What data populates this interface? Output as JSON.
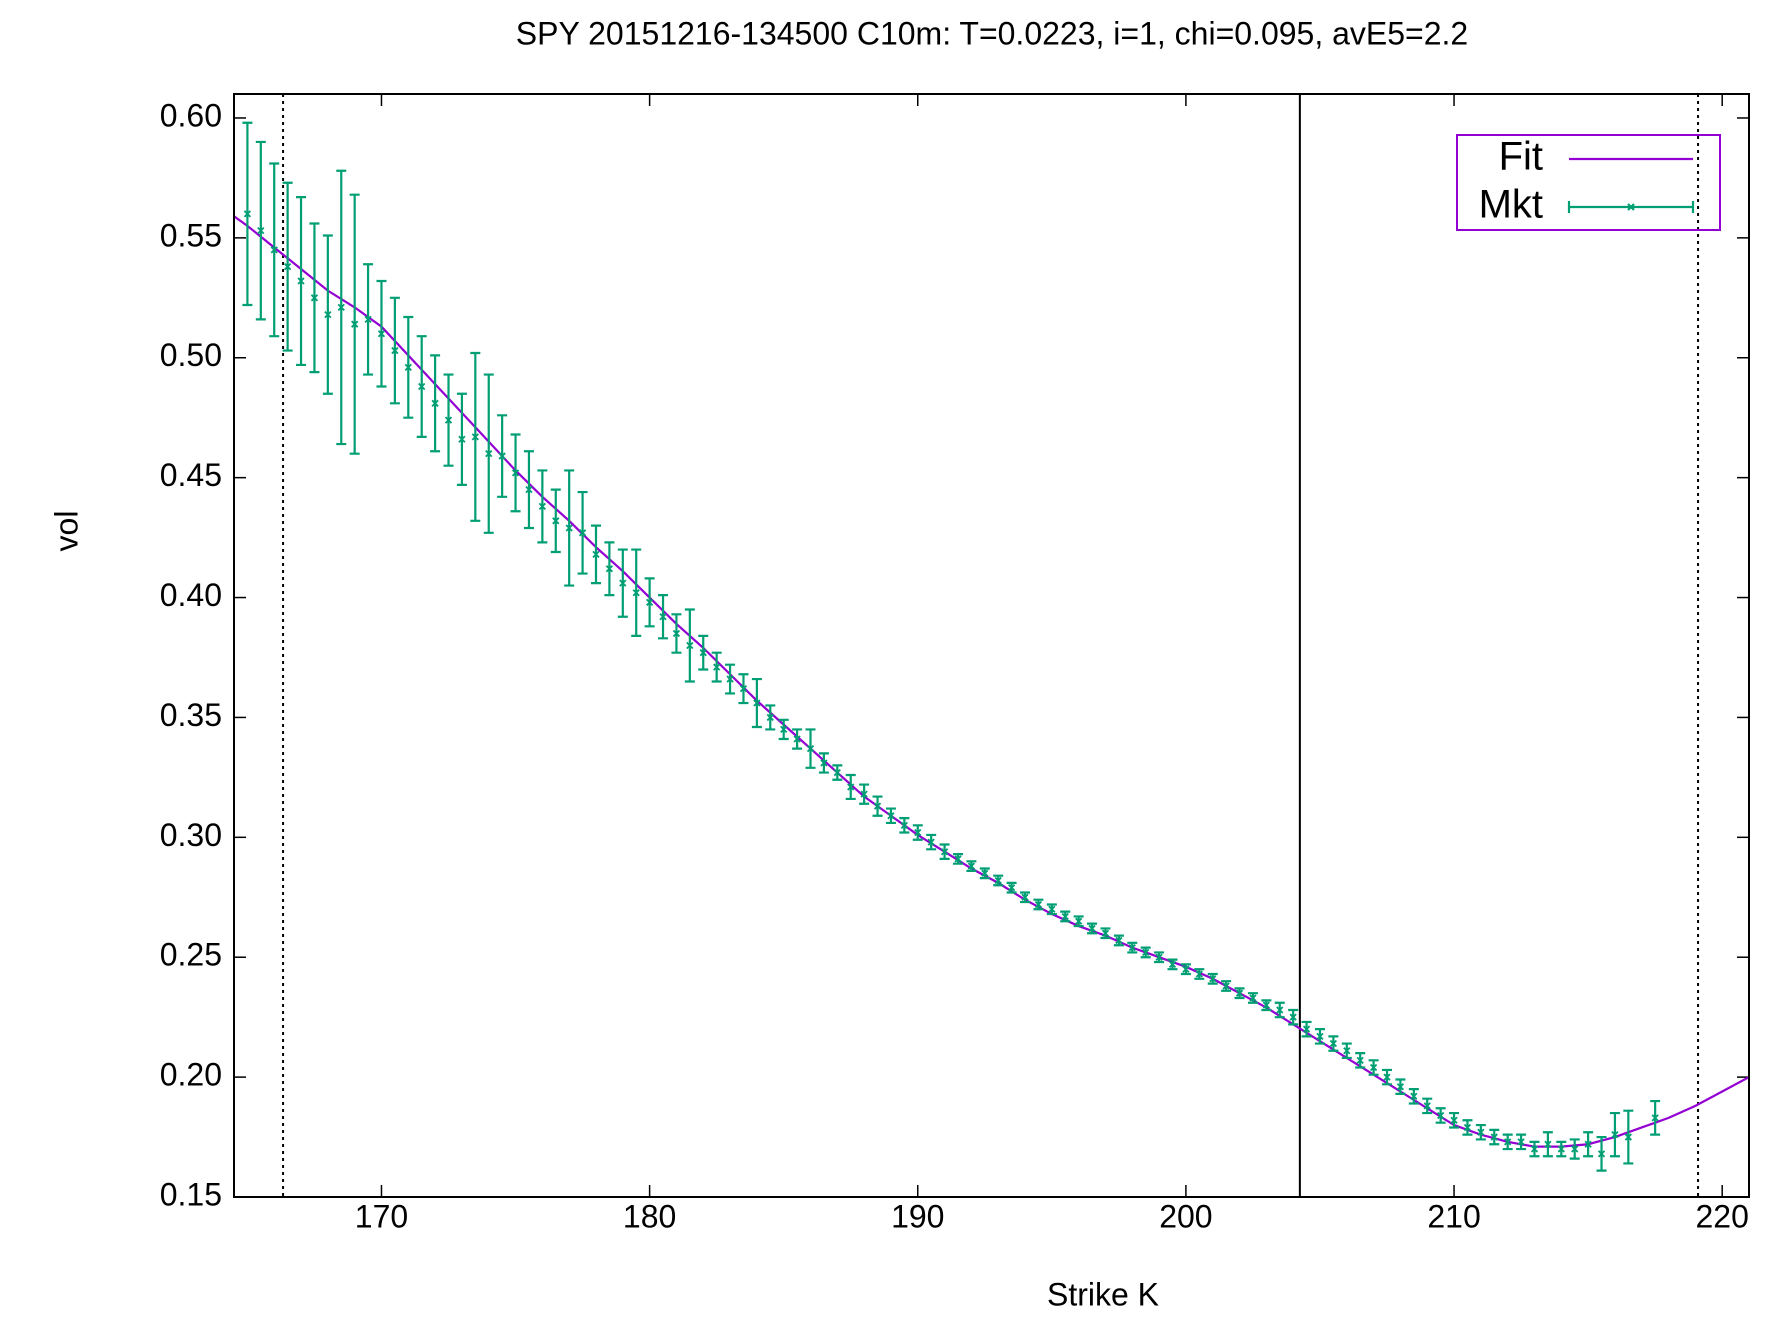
{
  "chart_data": {
    "type": "errorline",
    "title": "SPY 20151216-134500  C10m:  T=0.0223, i=1, chi=0.095, avE5=2.2",
    "x_label": "Strike K",
    "y_label": "vol",
    "xlim": [
      164.5,
      221
    ],
    "ylim": [
      0.15,
      0.61
    ],
    "xticks": [
      170,
      180,
      190,
      200,
      210,
      220
    ],
    "yticks": [
      {
        "value": 0.15,
        "label": "0.15"
      },
      {
        "value": 0.2,
        "label": "0.20"
      },
      {
        "value": 0.25,
        "label": "0.25"
      },
      {
        "value": 0.3,
        "label": "0.30"
      },
      {
        "value": 0.35,
        "label": "0.35"
      },
      {
        "value": 0.4,
        "label": "0.40"
      },
      {
        "value": 0.45,
        "label": "0.45"
      },
      {
        "value": 0.5,
        "label": "0.50"
      },
      {
        "value": 0.55,
        "label": "0.55"
      },
      {
        "value": 0.6,
        "label": "0.60"
      }
    ],
    "grid": false,
    "legend": "top-right",
    "vlines": [
      166.33,
      204.25,
      219.1
    ],
    "vline_styles": [
      "dotted",
      "solid",
      "dotted"
    ],
    "series": [
      {
        "name": "Fit",
        "color": "#9400d3",
        "x": [
          164.5,
          165,
          166,
          167,
          168,
          169,
          170,
          171,
          172,
          173,
          174,
          175,
          176,
          177,
          178,
          179,
          180,
          181,
          182,
          183,
          184,
          185,
          186,
          187,
          188,
          189,
          190,
          191,
          192,
          193,
          194,
          195,
          196,
          197,
          198,
          199,
          200,
          201,
          202,
          203,
          204,
          205,
          206,
          207,
          208,
          209,
          210,
          211,
          212,
          213,
          214,
          215,
          216,
          217,
          218,
          219,
          220,
          221
        ],
        "values": [
          0.559,
          0.555,
          0.546,
          0.537,
          0.528,
          0.521,
          0.513,
          0.501,
          0.489,
          0.477,
          0.465,
          0.453,
          0.442,
          0.432,
          0.421,
          0.411,
          0.4,
          0.389,
          0.379,
          0.368,
          0.357,
          0.347,
          0.337,
          0.327,
          0.317,
          0.309,
          0.301,
          0.294,
          0.287,
          0.281,
          0.274,
          0.268,
          0.263,
          0.259,
          0.254,
          0.25,
          0.246,
          0.241,
          0.235,
          0.229,
          0.222,
          0.215,
          0.208,
          0.201,
          0.194,
          0.187,
          0.18,
          0.176,
          0.173,
          0.171,
          0.171,
          0.172,
          0.175,
          0.179,
          0.183,
          0.188,
          0.194,
          0.2
        ]
      },
      {
        "name": "Mkt",
        "color": "#009e73",
        "x": [
          165,
          165.5,
          166,
          166.5,
          167,
          167.5,
          168,
          168.5,
          169,
          169.5,
          170,
          170.5,
          171,
          171.5,
          172,
          172.5,
          173,
          173.5,
          174,
          174.5,
          175,
          175.5,
          176,
          176.5,
          177,
          177.5,
          178,
          178.5,
          179,
          179.5,
          180,
          180.5,
          181,
          181.5,
          182,
          182.5,
          183,
          183.5,
          184,
          184.5,
          185,
          185.5,
          186,
          186.5,
          187,
          187.5,
          188,
          188.5,
          189,
          189.5,
          190,
          190.5,
          191,
          191.5,
          192,
          192.5,
          193,
          193.5,
          194,
          194.5,
          195,
          195.5,
          196,
          196.5,
          197,
          197.5,
          198,
          198.5,
          199,
          199.5,
          200,
          200.5,
          201,
          201.5,
          202,
          202.5,
          203,
          203.5,
          204,
          204.5,
          205,
          205.5,
          206,
          206.5,
          207,
          207.5,
          208,
          208.5,
          209,
          209.5,
          210,
          210.5,
          211,
          211.5,
          212,
          212.5,
          213,
          213.5,
          214,
          214.5,
          215,
          215.5,
          216,
          216.5,
          217.5
        ],
        "values": [
          0.56,
          0.553,
          0.545,
          0.538,
          0.532,
          0.525,
          0.518,
          0.521,
          0.514,
          0.516,
          0.51,
          0.503,
          0.496,
          0.488,
          0.481,
          0.474,
          0.466,
          0.467,
          0.46,
          0.459,
          0.452,
          0.445,
          0.438,
          0.432,
          0.429,
          0.427,
          0.418,
          0.412,
          0.406,
          0.402,
          0.398,
          0.392,
          0.385,
          0.38,
          0.377,
          0.371,
          0.366,
          0.362,
          0.356,
          0.35,
          0.345,
          0.341,
          0.337,
          0.331,
          0.327,
          0.321,
          0.318,
          0.313,
          0.309,
          0.305,
          0.302,
          0.298,
          0.294,
          0.291,
          0.288,
          0.285,
          0.282,
          0.279,
          0.275,
          0.272,
          0.27,
          0.267,
          0.265,
          0.262,
          0.26,
          0.257,
          0.254,
          0.252,
          0.25,
          0.247,
          0.245,
          0.243,
          0.241,
          0.238,
          0.235,
          0.233,
          0.23,
          0.228,
          0.225,
          0.22,
          0.217,
          0.214,
          0.211,
          0.207,
          0.204,
          0.2,
          0.196,
          0.192,
          0.188,
          0.184,
          0.182,
          0.179,
          0.177,
          0.175,
          0.173,
          0.173,
          0.17,
          0.172,
          0.17,
          0.17,
          0.172,
          0.168,
          0.176,
          0.175,
          0.183
        ],
        "errors": [
          0.038,
          0.037,
          0.036,
          0.035,
          0.035,
          0.031,
          0.033,
          0.057,
          0.054,
          0.023,
          0.022,
          0.022,
          0.021,
          0.021,
          0.02,
          0.019,
          0.019,
          0.035,
          0.033,
          0.017,
          0.016,
          0.016,
          0.015,
          0.013,
          0.024,
          0.017,
          0.012,
          0.011,
          0.014,
          0.018,
          0.01,
          0.009,
          0.008,
          0.015,
          0.007,
          0.006,
          0.006,
          0.006,
          0.01,
          0.005,
          0.004,
          0.004,
          0.008,
          0.004,
          0.003,
          0.005,
          0.004,
          0.004,
          0.003,
          0.003,
          0.003,
          0.003,
          0.003,
          0.002,
          0.002,
          0.002,
          0.002,
          0.002,
          0.002,
          0.002,
          0.002,
          0.002,
          0.002,
          0.002,
          0.002,
          0.002,
          0.002,
          0.002,
          0.002,
          0.002,
          0.002,
          0.002,
          0.002,
          0.002,
          0.002,
          0.002,
          0.002,
          0.003,
          0.003,
          0.003,
          0.003,
          0.003,
          0.003,
          0.003,
          0.003,
          0.003,
          0.003,
          0.003,
          0.003,
          0.003,
          0.003,
          0.003,
          0.003,
          0.003,
          0.003,
          0.003,
          0.003,
          0.005,
          0.003,
          0.004,
          0.005,
          0.007,
          0.009,
          0.011,
          0.007
        ]
      }
    ]
  }
}
